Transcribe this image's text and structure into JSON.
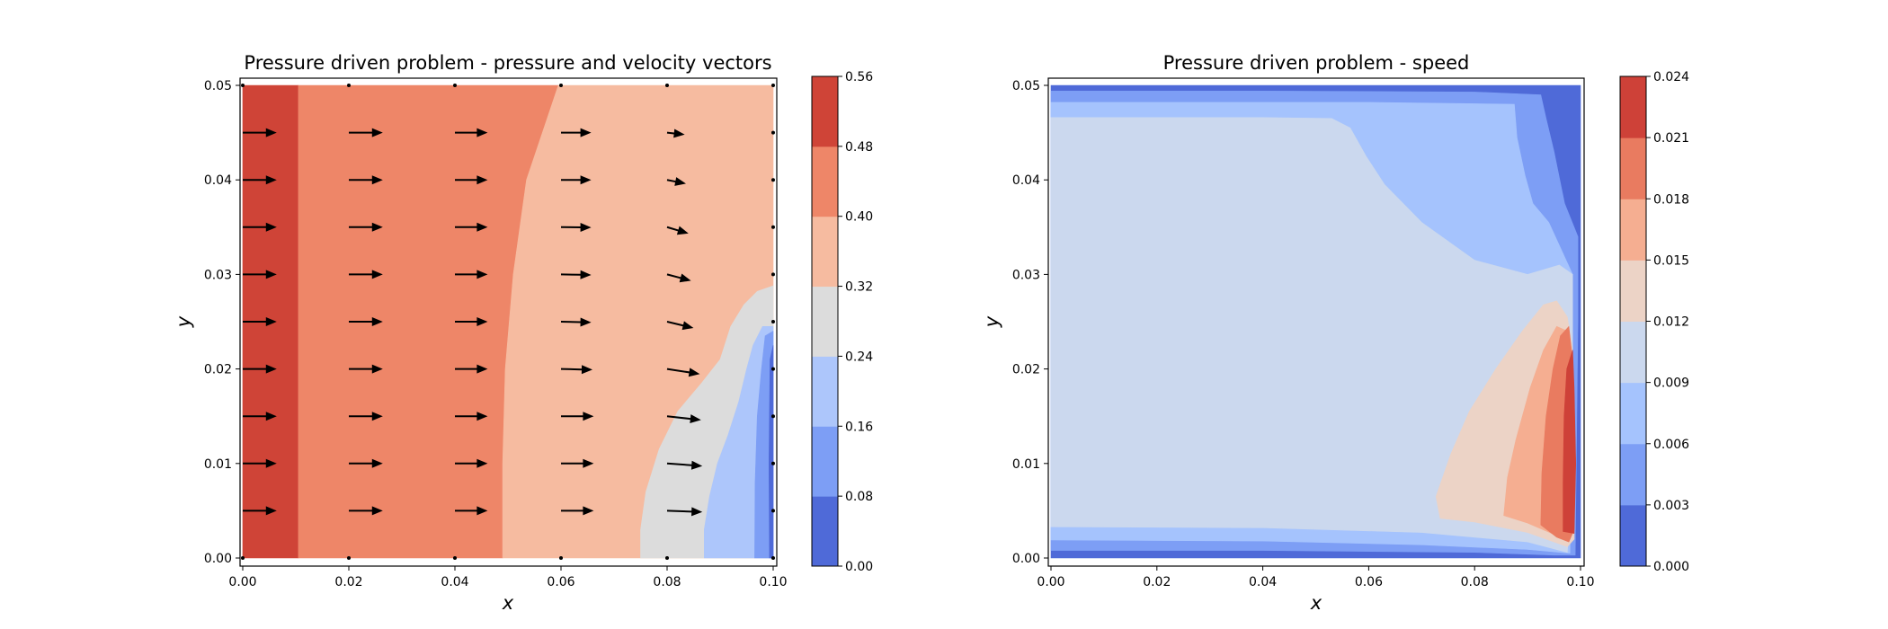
{
  "chart_data": [
    {
      "type": "filled-contour",
      "title": "Pressure driven problem - pressure and velocity vectors",
      "xlabel": "x",
      "ylabel": "y",
      "xlim": [
        0,
        0.1
      ],
      "ylim": [
        0,
        0.05
      ],
      "xticks": [
        "0.00",
        "0.02",
        "0.04",
        "0.06",
        "0.08",
        "0.10"
      ],
      "yticks": [
        "0.00",
        "0.01",
        "0.02",
        "0.03",
        "0.04",
        "0.05"
      ],
      "colorbar": {
        "levels": [
          0.0,
          0.08,
          0.16,
          0.24,
          0.32,
          0.4,
          0.48,
          0.56
        ],
        "labels": [
          "0.00",
          "0.08",
          "0.16",
          "0.24",
          "0.32",
          "0.40",
          "0.48",
          "0.56"
        ],
        "colors": [
          "#4f6ad8",
          "#7d9ef5",
          "#adc6fb",
          "#dcdcdc",
          "#f6bba0",
          "#ee8668",
          "#cf4437"
        ]
      },
      "contour_bands": [
        {
          "level": 0.52,
          "polygon": [
            [
              0,
              0
            ],
            [
              0.0105,
              0
            ],
            [
              0.0105,
              0.05
            ],
            [
              0,
              0.05
            ]
          ]
        },
        {
          "level": 0.44,
          "polygon": [
            [
              0.0105,
              0
            ],
            [
              0.049,
              0
            ],
            [
              0.049,
              0.01
            ],
            [
              0.0495,
              0.02
            ],
            [
              0.051,
              0.03
            ],
            [
              0.0535,
              0.04
            ],
            [
              0.0595,
              0.05
            ],
            [
              0.0105,
              0.05
            ]
          ]
        },
        {
          "level": 0.36,
          "polygon": [
            [
              0.049,
              0
            ],
            [
              0.1,
              0
            ],
            [
              0.1,
              0.05
            ],
            [
              0.0595,
              0.05
            ],
            [
              0.0535,
              0.04
            ],
            [
              0.051,
              0.03
            ],
            [
              0.0495,
              0.02
            ],
            [
              0.049,
              0.01
            ]
          ]
        },
        {
          "level": 0.28,
          "polygon": [
            [
              0.075,
              0
            ],
            [
              0.1,
              0
            ],
            [
              0.1,
              0.0288
            ],
            [
              0.097,
              0.0282
            ],
            [
              0.0945,
              0.0268
            ],
            [
              0.092,
              0.0245
            ],
            [
              0.09,
              0.021
            ],
            [
              0.0865,
              0.0185
            ],
            [
              0.082,
              0.0155
            ],
            [
              0.0785,
              0.0115
            ],
            [
              0.076,
              0.007
            ],
            [
              0.075,
              0.003
            ]
          ]
        },
        {
          "level": 0.2,
          "polygon": [
            [
              0.087,
              0
            ],
            [
              0.1,
              0
            ],
            [
              0.1,
              0.0245
            ],
            [
              0.098,
              0.0245
            ],
            [
              0.0962,
              0.0225
            ],
            [
              0.095,
              0.02
            ],
            [
              0.0935,
              0.0165
            ],
            [
              0.0915,
              0.013
            ],
            [
              0.0895,
              0.01
            ],
            [
              0.088,
              0.0065
            ],
            [
              0.087,
              0.003
            ]
          ]
        },
        {
          "level": 0.12,
          "polygon": [
            [
              0.0965,
              0
            ],
            [
              0.1,
              0
            ],
            [
              0.1,
              0.024
            ],
            [
              0.0985,
              0.0235
            ],
            [
              0.0978,
              0.02
            ],
            [
              0.097,
              0.015
            ],
            [
              0.0966,
              0.008
            ]
          ]
        },
        {
          "level": 0.04,
          "polygon": [
            [
              0.0993,
              0
            ],
            [
              0.1,
              0
            ],
            [
              0.1,
              0.0225
            ],
            [
              0.0994,
              0.021
            ],
            [
              0.0992,
              0.01
            ]
          ]
        }
      ],
      "vectors": {
        "x": [
          0.0,
          0.02,
          0.04,
          0.06,
          0.08,
          0.1
        ],
        "y": [
          0.005,
          0.01,
          0.015,
          0.02,
          0.025,
          0.03,
          0.035,
          0.04,
          0.045
        ],
        "scale": 0.09,
        "u": [
          [
            0.0135,
            0.0135,
            0.013,
            0.013,
            0.014,
            0.001
          ],
          [
            0.0135,
            0.0135,
            0.013,
            0.013,
            0.014,
            0.001
          ],
          [
            0.0135,
            0.0135,
            0.013,
            0.013,
            0.0135,
            0.001
          ],
          [
            0.0135,
            0.0135,
            0.013,
            0.0125,
            0.013,
            0.001
          ],
          [
            0.0135,
            0.0135,
            0.013,
            0.012,
            0.0105,
            0.0
          ],
          [
            0.0135,
            0.0135,
            0.013,
            0.012,
            0.0095,
            0.0
          ],
          [
            0.0135,
            0.0135,
            0.013,
            0.012,
            0.0085,
            0.0
          ],
          [
            0.0135,
            0.0135,
            0.013,
            0.012,
            0.0075,
            0.0
          ],
          [
            0.0135,
            0.0135,
            0.013,
            0.012,
            0.007,
            0.0
          ]
        ],
        "v": [
          [
            0.0,
            0.0,
            0.0,
            0.0,
            -0.0005,
            0.0
          ],
          [
            0.0,
            0.0,
            0.0,
            0.0,
            -0.001,
            0.0
          ],
          [
            0.0,
            0.0,
            0.0,
            0.0,
            -0.0015,
            0.0
          ],
          [
            0.0,
            0.0,
            0.0,
            -0.0003,
            -0.002,
            0.0
          ],
          [
            0.0,
            0.0,
            0.0,
            -0.0003,
            -0.0025,
            0.0
          ],
          [
            0.0,
            0.0,
            0.0,
            -0.0002,
            -0.0025,
            0.0
          ],
          [
            0.0,
            0.0,
            0.0,
            -0.0001,
            -0.0025,
            0.0
          ],
          [
            0.0,
            0.0,
            0.0,
            0.0,
            -0.0015,
            0.0
          ],
          [
            0.0,
            0.0,
            0.0,
            0.0,
            -0.0008,
            0.0
          ]
        ]
      }
    },
    {
      "type": "filled-contour",
      "title": "Pressure driven problem - speed",
      "xlabel": "x",
      "ylabel": "y",
      "xlim": [
        0,
        0.1
      ],
      "ylim": [
        0,
        0.05
      ],
      "xticks": [
        "0.00",
        "0.02",
        "0.04",
        "0.06",
        "0.08",
        "0.10"
      ],
      "yticks": [
        "0.00",
        "0.01",
        "0.02",
        "0.03",
        "0.04",
        "0.05"
      ],
      "colorbar": {
        "levels": [
          0.0,
          0.003,
          0.006,
          0.009,
          0.012,
          0.015,
          0.018,
          0.021,
          0.024
        ],
        "labels": [
          "0.000",
          "0.003",
          "0.006",
          "0.009",
          "0.012",
          "0.015",
          "0.018",
          "0.021",
          "0.024"
        ],
        "colors": [
          "#4f6ad8",
          "#7d9ef5",
          "#a5c3fd",
          "#cbd8ee",
          "#ecd3c6",
          "#f5ae91",
          "#e97b60",
          "#ce4138"
        ]
      },
      "contour_bands": [
        {
          "level": 0.0015,
          "polygon": [
            [
              0,
              0
            ],
            [
              0.1,
              0
            ],
            [
              0.1,
              0.05
            ],
            [
              0,
              0.05
            ]
          ]
        },
        {
          "level": 0.0045,
          "polygon": [
            [
              0,
              0.0008
            ],
            [
              0.04,
              0.0008
            ],
            [
              0.08,
              0.0006
            ],
            [
              0.095,
              0.0003
            ],
            [
              0.099,
              0.0003
            ],
            [
              0.0995,
              0.025
            ],
            [
              0.0995,
              0.034
            ],
            [
              0.097,
              0.0375
            ],
            [
              0.095,
              0.043
            ],
            [
              0.0935,
              0.0465
            ],
            [
              0.0925,
              0.049
            ],
            [
              0.08,
              0.0493
            ],
            [
              0.04,
              0.0494
            ],
            [
              0,
              0.0494
            ]
          ]
        },
        {
          "level": 0.0075,
          "polygon": [
            [
              0,
              0.0019
            ],
            [
              0.04,
              0.0018
            ],
            [
              0.07,
              0.0014
            ],
            [
              0.09,
              0.0009
            ],
            [
              0.098,
              0.0005
            ],
            [
              0.0985,
              0.015
            ],
            [
              0.0985,
              0.03
            ],
            [
              0.094,
              0.0355
            ],
            [
              0.091,
              0.0375
            ],
            [
              0.0895,
              0.0405
            ],
            [
              0.088,
              0.0445
            ],
            [
              0.0875,
              0.048
            ],
            [
              0.06,
              0.0482
            ],
            [
              0.03,
              0.0482
            ],
            [
              0,
              0.0482
            ]
          ]
        },
        {
          "level": 0.0105,
          "polygon": [
            [
              0,
              0.0033
            ],
            [
              0.04,
              0.0032
            ],
            [
              0.07,
              0.0027
            ],
            [
              0.09,
              0.0017
            ],
            [
              0.0975,
              0.0006
            ],
            [
              0.0985,
              0.01
            ],
            [
              0.0985,
              0.022
            ],
            [
              0.0985,
              0.03
            ],
            [
              0.096,
              0.031
            ],
            [
              0.09,
              0.03
            ],
            [
              0.08,
              0.0315
            ],
            [
              0.07,
              0.0355
            ],
            [
              0.063,
              0.0395
            ],
            [
              0.0595,
              0.0425
            ],
            [
              0.0565,
              0.0455
            ],
            [
              0.053,
              0.0465
            ],
            [
              0.04,
              0.0466
            ],
            [
              0,
              0.0466
            ]
          ]
        },
        {
          "level": 0.0135,
          "polygon": [
            [
              0.0735,
              0.0042
            ],
            [
              0.08,
              0.0038
            ],
            [
              0.09,
              0.0027
            ],
            [
              0.0975,
              0.0012
            ],
            [
              0.0988,
              0.002
            ],
            [
              0.0988,
              0.012
            ],
            [
              0.0985,
              0.022
            ],
            [
              0.0975,
              0.0255
            ],
            [
              0.0955,
              0.0272
            ],
            [
              0.093,
              0.0268
            ],
            [
              0.089,
              0.024
            ],
            [
              0.084,
              0.02
            ],
            [
              0.079,
              0.0155
            ],
            [
              0.0755,
              0.011
            ],
            [
              0.0727,
              0.0065
            ]
          ]
        },
        {
          "level": 0.0165,
          "polygon": [
            [
              0.0855,
              0.0045
            ],
            [
              0.09,
              0.0037
            ],
            [
              0.095,
              0.0025
            ],
            [
              0.0975,
              0.0018
            ],
            [
              0.0988,
              0.003
            ],
            [
              0.0988,
              0.012
            ],
            [
              0.0985,
              0.021
            ],
            [
              0.0975,
              0.024
            ],
            [
              0.0955,
              0.0245
            ],
            [
              0.093,
              0.022
            ],
            [
              0.0905,
              0.018
            ],
            [
              0.0878,
              0.0125
            ],
            [
              0.0862,
              0.0085
            ]
          ]
        },
        {
          "level": 0.0195,
          "polygon": [
            [
              0.0925,
              0.0035
            ],
            [
              0.0955,
              0.0022
            ],
            [
              0.0978,
              0.0017
            ],
            [
              0.0988,
              0.003
            ],
            [
              0.0988,
              0.012
            ],
            [
              0.0983,
              0.022
            ],
            [
              0.0978,
              0.0245
            ],
            [
              0.0962,
              0.0235
            ],
            [
              0.0948,
              0.02
            ],
            [
              0.0935,
              0.015
            ],
            [
              0.0927,
              0.009
            ]
          ]
        },
        {
          "level": 0.0225,
          "polygon": [
            [
              0.0967,
              0.0028
            ],
            [
              0.0988,
              0.0026
            ],
            [
              0.0991,
              0.01
            ],
            [
              0.0988,
              0.018
            ],
            [
              0.0985,
              0.022
            ],
            [
              0.0974,
              0.02
            ],
            [
              0.0969,
              0.015
            ],
            [
              0.0967,
              0.008
            ]
          ]
        }
      ]
    }
  ]
}
